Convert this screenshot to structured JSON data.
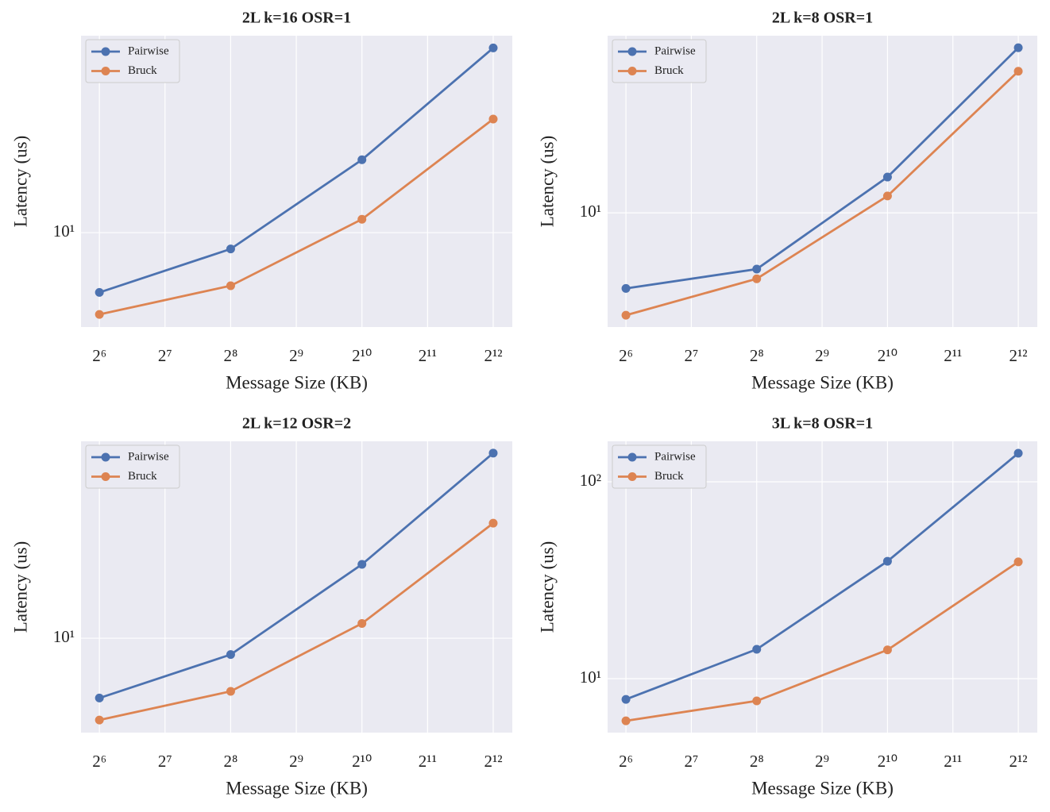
{
  "chart_data": [
    {
      "type": "line",
      "title": "2L k=16 OSR=1",
      "xlabel": "Message Size (KB)",
      "ylabel": "Latency (us)",
      "x": [
        64,
        256,
        1024,
        4096
      ],
      "series": [
        {
          "name": "Pairwise",
          "color": "#4c72b0",
          "values": [
            6.8,
            9.0,
            16.0,
            32.9
          ]
        },
        {
          "name": "Bruck",
          "color": "#dd8452",
          "values": [
            5.9,
            7.1,
            10.9,
            20.8
          ]
        }
      ],
      "xscale": "log",
      "yscale": "log",
      "xlim": [
        52.7,
        5010
      ],
      "ylim": [
        5.44,
        35.6
      ],
      "xticks": [
        {
          "value": 64,
          "label": "2⁶"
        },
        {
          "value": 128,
          "label": "2⁷"
        },
        {
          "value": 256,
          "label": "2⁸"
        },
        {
          "value": 512,
          "label": "2⁹"
        },
        {
          "value": 1024,
          "label": "2¹⁰"
        },
        {
          "value": 2048,
          "label": "2¹¹"
        },
        {
          "value": 4096,
          "label": "2¹²"
        }
      ],
      "yticks": [
        {
          "value": 10,
          "label": "10¹"
        }
      ],
      "grid": true,
      "legend": "upper-left"
    },
    {
      "type": "line",
      "title": "2L k=8 OSR=1",
      "xlabel": "Message Size (KB)",
      "ylabel": "Latency (us)",
      "x": [
        64,
        256,
        1024,
        4096
      ],
      "series": [
        {
          "name": "Pairwise",
          "color": "#4c72b0",
          "values": [
            5.78,
            6.65,
            12.96,
            33.1
          ]
        },
        {
          "name": "Bruck",
          "color": "#dd8452",
          "values": [
            4.76,
            6.2,
            11.3,
            27.9
          ]
        }
      ],
      "xscale": "log",
      "yscale": "log",
      "xlim": [
        52.7,
        5010
      ],
      "ylim": [
        4.37,
        36.1
      ],
      "xticks": [
        {
          "value": 64,
          "label": "2⁶"
        },
        {
          "value": 128,
          "label": "2⁷"
        },
        {
          "value": 256,
          "label": "2⁸"
        },
        {
          "value": 512,
          "label": "2⁹"
        },
        {
          "value": 1024,
          "label": "2¹⁰"
        },
        {
          "value": 2048,
          "label": "2¹¹"
        },
        {
          "value": 4096,
          "label": "2¹²"
        }
      ],
      "yticks": [
        {
          "value": 10,
          "label": "10¹"
        }
      ],
      "grid": true,
      "legend": "upper-left"
    },
    {
      "type": "line",
      "title": "2L k=12 OSR=2",
      "xlabel": "Message Size (KB)",
      "ylabel": "Latency (us)",
      "x": [
        64,
        256,
        1024,
        4096
      ],
      "series": [
        {
          "name": "Pairwise",
          "color": "#4c72b0",
          "values": [
            6.8,
            9.0,
            16.1,
            33.0
          ]
        },
        {
          "name": "Bruck",
          "color": "#dd8452",
          "values": [
            5.9,
            7.1,
            11.0,
            21.0
          ]
        }
      ],
      "xscale": "log",
      "yscale": "log",
      "xlim": [
        52.7,
        5010
      ],
      "ylim": [
        5.44,
        35.6
      ],
      "xticks": [
        {
          "value": 64,
          "label": "2⁶"
        },
        {
          "value": 128,
          "label": "2⁷"
        },
        {
          "value": 256,
          "label": "2⁸"
        },
        {
          "value": 512,
          "label": "2⁹"
        },
        {
          "value": 1024,
          "label": "2¹⁰"
        },
        {
          "value": 2048,
          "label": "2¹¹"
        },
        {
          "value": 4096,
          "label": "2¹²"
        }
      ],
      "yticks": [
        {
          "value": 10,
          "label": "10¹"
        }
      ],
      "grid": true,
      "legend": "upper-left"
    },
    {
      "type": "line",
      "title": "3L k=8 OSR=1",
      "xlabel": "Message Size (KB)",
      "ylabel": "Latency (us)",
      "x": [
        64,
        256,
        1024,
        4096
      ],
      "series": [
        {
          "name": "Pairwise",
          "color": "#4c72b0",
          "values": [
            7.85,
            14.1,
            39.5,
            139.7
          ]
        },
        {
          "name": "Bruck",
          "color": "#dd8452",
          "values": [
            6.11,
            7.71,
            14.0,
            39.2
          ]
        }
      ],
      "xscale": "log",
      "yscale": "log",
      "xlim": [
        52.7,
        5010
      ],
      "ylim": [
        5.32,
        160.6
      ],
      "xticks": [
        {
          "value": 64,
          "label": "2⁶"
        },
        {
          "value": 128,
          "label": "2⁷"
        },
        {
          "value": 256,
          "label": "2⁸"
        },
        {
          "value": 512,
          "label": "2⁹"
        },
        {
          "value": 1024,
          "label": "2¹⁰"
        },
        {
          "value": 2048,
          "label": "2¹¹"
        },
        {
          "value": 4096,
          "label": "2¹²"
        }
      ],
      "yticks": [
        {
          "value": 10,
          "label": "10¹"
        },
        {
          "value": 100,
          "label": "10²"
        }
      ],
      "grid": true,
      "legend": "upper-left"
    }
  ]
}
